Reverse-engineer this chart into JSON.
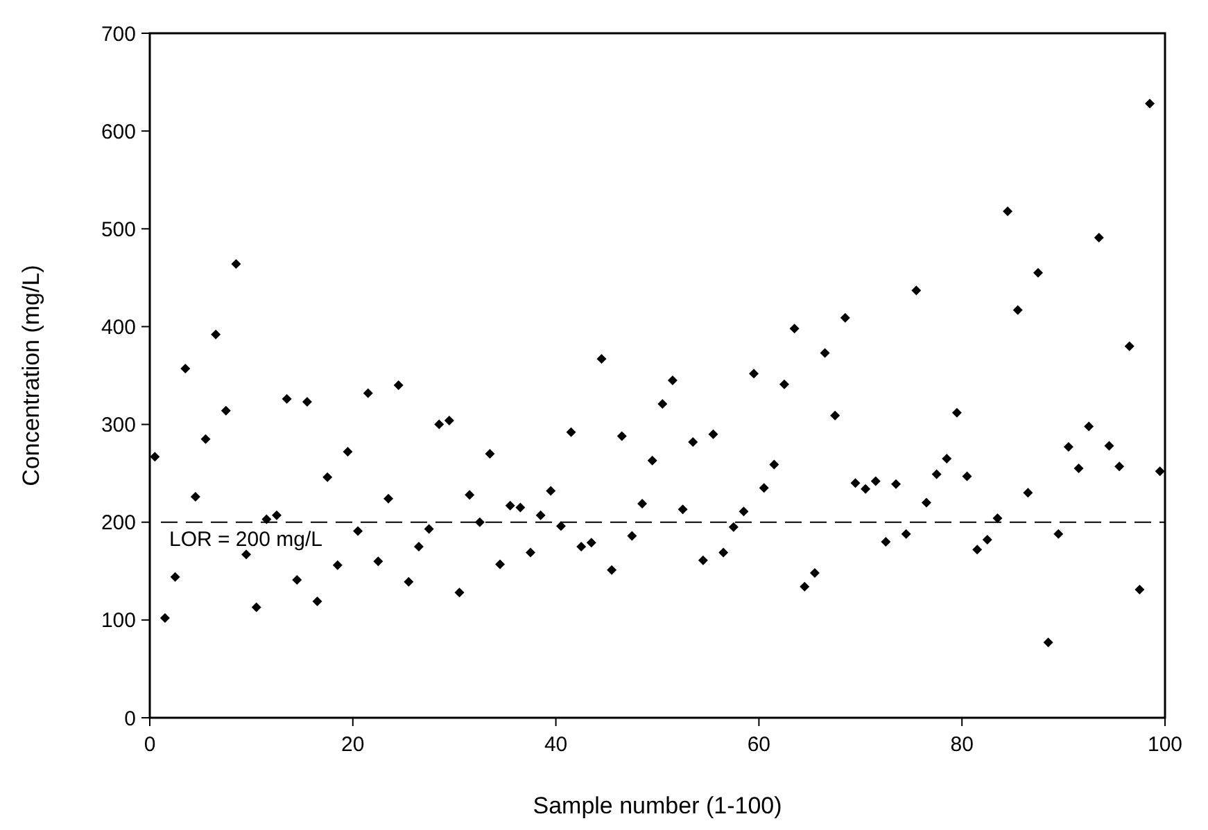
{
  "chart_data": {
    "type": "scatter",
    "xlabel": "Sample number (1-100)",
    "ylabel": "Concentration (mg/L)",
    "xlim": [
      0,
      100
    ],
    "xticks": [
      0,
      20,
      40,
      60,
      80,
      100
    ],
    "ylim": [
      0,
      700
    ],
    "yticks": [
      0,
      100,
      200,
      300,
      400,
      500,
      600,
      700
    ],
    "grid": false,
    "marker": "diamond",
    "ref_lines": [
      {
        "axis": "y",
        "value": 200,
        "label": "LOR = 200 mg/L",
        "color": "#000000",
        "line_style": "dashed"
      }
    ],
    "series": [
      {
        "color": "#000000",
        "x": [
          0.5,
          1.5,
          2.5,
          3.5,
          4.5,
          5.5,
          6.5,
          7.5,
          8.5,
          9.5,
          10.5,
          11.5,
          12.5,
          13.5,
          14.5,
          15.5,
          16.5,
          17.5,
          18.5,
          19.5,
          20.5,
          21.5,
          22.5,
          23.5,
          24.5,
          25.5,
          26.5,
          27.5,
          28.5,
          29.5,
          30.5,
          31.5,
          32.5,
          33.5,
          34.5,
          35.5,
          36.5,
          37.5,
          38.5,
          39.5,
          40.5,
          41.5,
          42.5,
          43.5,
          44.5,
          45.5,
          46.5,
          47.5,
          48.5,
          49.5,
          50.5,
          51.5,
          52.5,
          53.5,
          54.5,
          55.5,
          56.5,
          57.5,
          58.5,
          59.5,
          60.5,
          61.5,
          62.5,
          63.5,
          64.5,
          65.5,
          66.5,
          67.5,
          68.5,
          69.5,
          70.5,
          71.5,
          72.5,
          73.5,
          74.5,
          75.5,
          76.5,
          77.5,
          78.5,
          79.5,
          80.5,
          81.5,
          82.5,
          83.5,
          84.5,
          85.5,
          86.5,
          87.5,
          88.5,
          89.5,
          90.5,
          91.5,
          92.5,
          93.5,
          94.5,
          95.5,
          96.5,
          97.5,
          98.5,
          99.5
        ],
        "values": [
          267,
          102,
          144,
          357,
          226,
          285,
          392,
          314,
          464,
          167,
          113,
          203,
          207,
          326,
          141,
          323,
          119,
          246,
          156,
          272,
          191,
          332,
          160,
          224,
          340,
          139,
          175,
          193,
          300,
          304,
          128,
          228,
          200,
          270,
          157,
          217,
          215,
          169,
          207,
          232,
          196,
          292,
          175,
          179,
          367,
          151,
          288,
          186,
          219,
          263,
          321,
          345,
          213,
          282,
          161,
          290,
          169,
          195,
          211,
          352,
          235,
          259,
          341,
          398,
          134,
          148,
          373,
          309,
          409,
          240,
          234,
          242,
          180,
          239,
          188,
          437,
          220,
          249,
          265,
          312,
          247,
          172,
          182,
          204,
          518,
          417,
          230,
          455,
          77,
          188,
          277,
          255,
          298,
          491,
          278,
          257,
          380,
          131,
          628,
          252
        ]
      }
    ]
  }
}
